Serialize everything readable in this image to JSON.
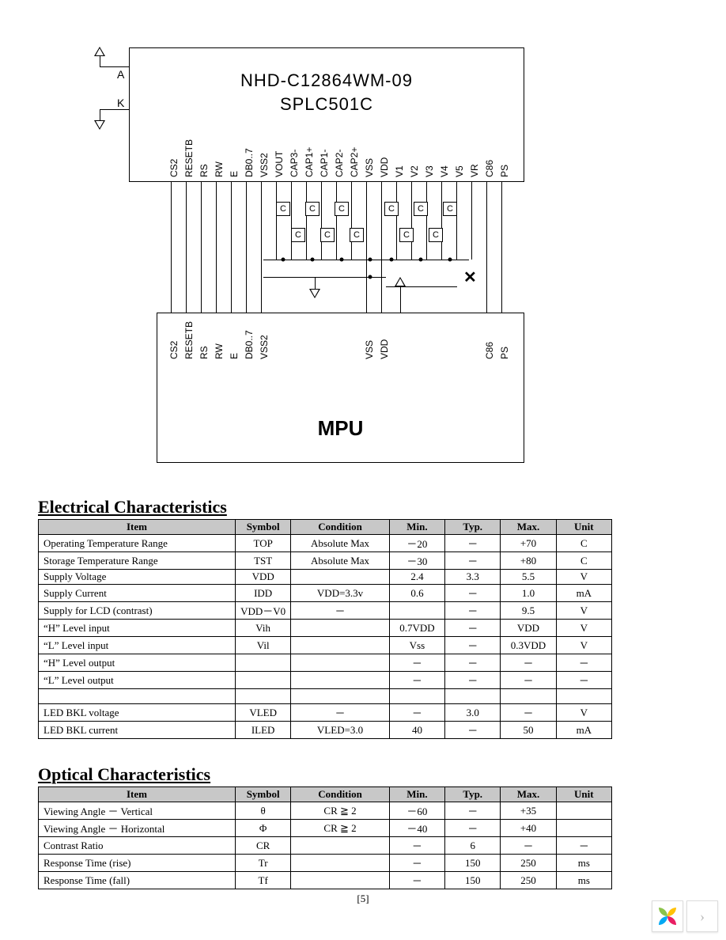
{
  "diagram": {
    "lcd_title": "NHD-C12864WM-09",
    "lcd_subtitle": "SPLC501C",
    "mpu_label": "MPU",
    "a_label": "A",
    "k_label": "K",
    "cap_label": "C",
    "lcd_pins": [
      "CS2",
      "RESETB",
      "RS",
      "RW",
      "E",
      "DB0..7",
      "VSS2",
      "VOUT",
      "CAP3-",
      "CAP1+",
      "CAP1-",
      "CAP2-",
      "CAP2+",
      "VSS",
      "VDD",
      "V1",
      "V2",
      "V3",
      "V4",
      "V5",
      "VR",
      "C86",
      "PS"
    ],
    "mpu_pins": [
      "CS2",
      "RESETB",
      "RS",
      "RW",
      "E",
      "DB0..7",
      "VSS2",
      "VSS",
      "VDD",
      "C86",
      "PS"
    ],
    "colors": {
      "line": "#000000",
      "bg": "#ffffff",
      "header_bg": "#c8c8c8"
    }
  },
  "electrical": {
    "title": "Electrical Characteristics",
    "headers": [
      "Item",
      "Symbol",
      "Condition",
      "Min.",
      "Typ.",
      "Max.",
      "Unit"
    ],
    "rows": [
      [
        "Operating Temperature Range",
        "TOP",
        "Absolute Max",
        "－20",
        "－",
        "+70",
        "C"
      ],
      [
        "Storage Temperature Range",
        "TST",
        "Absolute Max",
        "－30",
        "－",
        "+80",
        "C"
      ],
      [
        "Supply Voltage",
        "VDD",
        "",
        "2.4",
        "3.3",
        "5.5",
        "V"
      ],
      [
        "Supply Current",
        "IDD",
        "VDD=3.3v",
        "0.6",
        "－",
        "1.0",
        "mA"
      ],
      [
        "Supply for LCD (contrast)",
        "VDD－V0",
        "－",
        "",
        "－",
        "9.5",
        "V"
      ],
      [
        "“H” Level input",
        "Vih",
        "",
        "0.7VDD",
        "－",
        "VDD",
        "V"
      ],
      [
        "“L” Level input",
        "Vil",
        "",
        "Vss",
        "－",
        "0.3VDD",
        "V"
      ],
      [
        "“H” Level output",
        "",
        "",
        "－",
        "－",
        "－",
        "－"
      ],
      [
        "“L” Level output",
        "",
        "",
        "－",
        "－",
        "－",
        "－"
      ],
      [
        "",
        "",
        "",
        "",
        "",
        "",
        ""
      ],
      [
        "LED BKL voltage",
        "VLED",
        "－",
        "－",
        "3.0",
        "－",
        "V"
      ],
      [
        "LED BKL current",
        "ILED",
        "VLED=3.0",
        "40",
        "－",
        "50",
        "mA"
      ]
    ]
  },
  "optical": {
    "title": "Optical Characteristics",
    "headers": [
      "Item",
      "Symbol",
      "Condition",
      "Min.",
      "Typ.",
      "Max.",
      "Unit"
    ],
    "rows": [
      [
        "Viewing Angle － Vertical",
        "θ",
        "CR ≧ 2",
        "－60",
        "－",
        "+35",
        ""
      ],
      [
        "Viewing Angle － Horizontal",
        "Φ",
        "CR ≧ 2",
        "－40",
        "－",
        "+40",
        ""
      ],
      [
        "Contrast Ratio",
        "CR",
        "",
        "－",
        "6",
        "－",
        "－"
      ],
      [
        "Response Time (rise)",
        "Tr",
        "",
        "－",
        "150",
        "250",
        "ms"
      ],
      [
        "Response Time (fall)",
        "Tf",
        "",
        "－",
        "150",
        "250",
        "ms"
      ]
    ]
  },
  "page_number": "[5]",
  "footer_logo_colors": [
    "#8bc34a",
    "#ffc107",
    "#03a9f4",
    "#e91e63"
  ]
}
